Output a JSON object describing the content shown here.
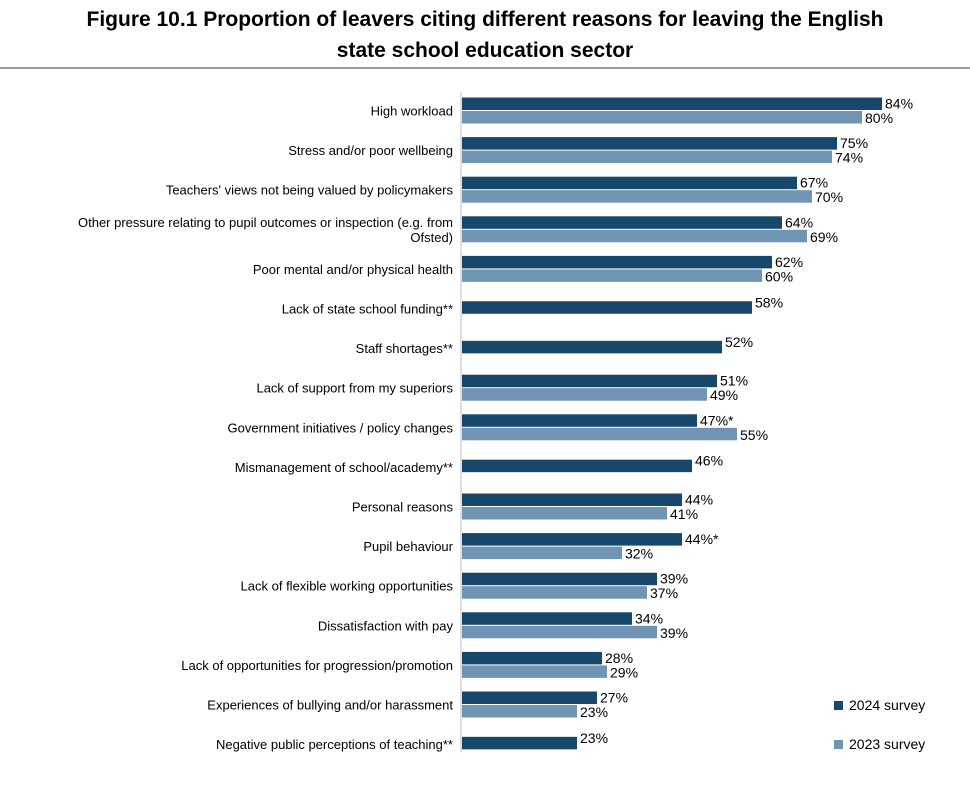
{
  "title": {
    "line1": "Figure 10.1 Proportion of leavers citing different reasons for leaving the English",
    "line2": "state school education sector"
  },
  "colors": {
    "series_2024": "#17476a",
    "series_2023": "#7094b3",
    "rule": "#9a9a9a"
  },
  "chart_data": {
    "type": "bar",
    "orientation": "horizontal",
    "title": "Figure 10.1 Proportion of leavers citing different reasons for leaving the English state school education sector",
    "xlim": [
      0,
      100
    ],
    "grid": false,
    "legend_position": "bottom-right",
    "categories": [
      [
        "High workload"
      ],
      [
        "Stress and/or poor wellbeing"
      ],
      [
        "Teachers' views not being valued by policymakers"
      ],
      [
        "Other pressure relating to pupil outcomes or inspection (e.g. from",
        "Ofsted)"
      ],
      [
        "Poor mental and/or physical health"
      ],
      [
        "Lack of state school funding**"
      ],
      [
        "Staff shortages**"
      ],
      [
        "Lack of support from my superiors"
      ],
      [
        "Government initiatives / policy changes"
      ],
      [
        "Mismanagement of school/academy**"
      ],
      [
        "Personal reasons"
      ],
      [
        "Pupil behaviour"
      ],
      [
        "Lack of flexible working opportunities"
      ],
      [
        "Dissatisfaction with pay"
      ],
      [
        "Lack of opportunities for progression/promotion"
      ],
      [
        "Experiences of bullying and/or harassment"
      ],
      [
        "Negative public perceptions of teaching**"
      ]
    ],
    "series": [
      {
        "name": "2024 survey",
        "values": [
          84,
          75,
          67,
          64,
          62,
          58,
          52,
          51,
          47,
          46,
          44,
          44,
          39,
          34,
          28,
          27,
          23
        ],
        "labels": [
          "84%",
          "75%",
          "67%",
          "64%",
          "62%",
          "58%",
          "52%",
          "51%",
          "47%*",
          "46%",
          "44%",
          "44%*",
          "39%",
          "34%",
          "28%",
          "27%",
          "23%"
        ]
      },
      {
        "name": "2023 survey",
        "values": [
          80,
          74,
          70,
          69,
          60,
          null,
          null,
          49,
          55,
          null,
          41,
          32,
          37,
          39,
          29,
          23,
          null
        ],
        "labels": [
          "80%",
          "74%",
          "70%",
          "69%",
          "60%",
          null,
          null,
          "49%",
          "55%",
          null,
          "41%",
          "32%",
          "37%",
          "39%",
          "29%",
          "23%",
          null
        ]
      }
    ]
  }
}
